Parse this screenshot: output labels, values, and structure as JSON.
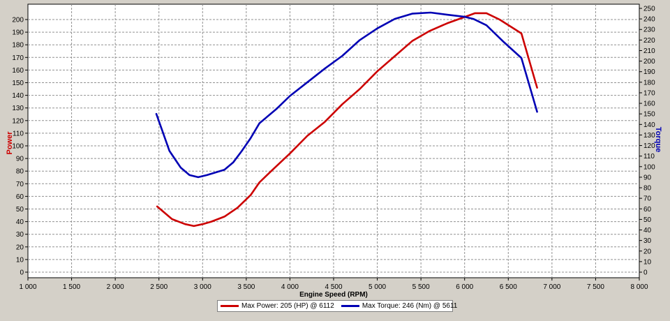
{
  "chart_data": {
    "type": "line",
    "xlabel": "Engine Speed (RPM)",
    "ylabel_left": "Power",
    "ylabel_right": "Torque",
    "xlim": [
      1000,
      8000
    ],
    "ylim_left": [
      0,
      210
    ],
    "ylim_right": [
      0,
      252
    ],
    "x_ticks": [
      1000,
      1500,
      2000,
      2500,
      3000,
      3500,
      4000,
      4500,
      5000,
      5500,
      6000,
      6500,
      7000,
      7500,
      8000
    ],
    "x_tick_labels": [
      "1 000",
      "1 500",
      "2 000",
      "2 500",
      "3 000",
      "3 500",
      "4 000",
      "4 500",
      "5 000",
      "5 500",
      "6 000",
      "6 500",
      "7 000",
      "7 500",
      "8 000"
    ],
    "y_left_ticks": [
      0,
      10,
      20,
      30,
      40,
      50,
      60,
      70,
      80,
      90,
      100,
      110,
      120,
      130,
      140,
      150,
      160,
      170,
      180,
      190,
      200
    ],
    "y_right_ticks": [
      0,
      10,
      20,
      30,
      40,
      50,
      60,
      70,
      80,
      90,
      100,
      110,
      120,
      130,
      140,
      150,
      160,
      170,
      180,
      190,
      200,
      210,
      220,
      230,
      240,
      250
    ],
    "grid": true,
    "legend_position": "bottom-center",
    "series": [
      {
        "name": "Power",
        "axis": "left",
        "color": "#cc0000",
        "x": [
          2480,
          2650,
          2800,
          2900,
          3000,
          3100,
          3250,
          3400,
          3550,
          3650,
          3800,
          4000,
          4200,
          4400,
          4600,
          4800,
          5000,
          5200,
          5400,
          5600,
          5800,
          6000,
          6120,
          6250,
          6400,
          6650,
          6830
        ],
        "values": [
          52,
          42,
          38,
          36.5,
          38,
          40,
          44,
          51,
          61,
          71,
          81,
          94,
          108,
          119,
          133,
          145,
          159,
          171,
          183,
          191,
          197,
          202,
          205,
          205,
          200,
          189,
          146
        ]
      },
      {
        "name": "Torque",
        "axis": "right",
        "color": "#0000b4",
        "x": [
          2470,
          2620,
          2750,
          2850,
          2950,
          3050,
          3250,
          3350,
          3450,
          3550,
          3650,
          3850,
          4000,
          4200,
          4400,
          4600,
          4800,
          5000,
          5200,
          5400,
          5611,
          5800,
          6000,
          6100,
          6250,
          6450,
          6650,
          6830
        ],
        "values": [
          150,
          115,
          99,
          92,
          90,
          92,
          97,
          104,
          115,
          127,
          141,
          155,
          167,
          180,
          193,
          205,
          220,
          231,
          240,
          245,
          246,
          244,
          242,
          240,
          234,
          218,
          203,
          152
        ]
      }
    ],
    "legend": [
      {
        "text": "Max Power: 205 (HP) @ 6112",
        "color": "#cc0000"
      },
      {
        "text": "Max Torque: 246 (Nm) @ 5611",
        "color": "#0000b4"
      }
    ]
  }
}
